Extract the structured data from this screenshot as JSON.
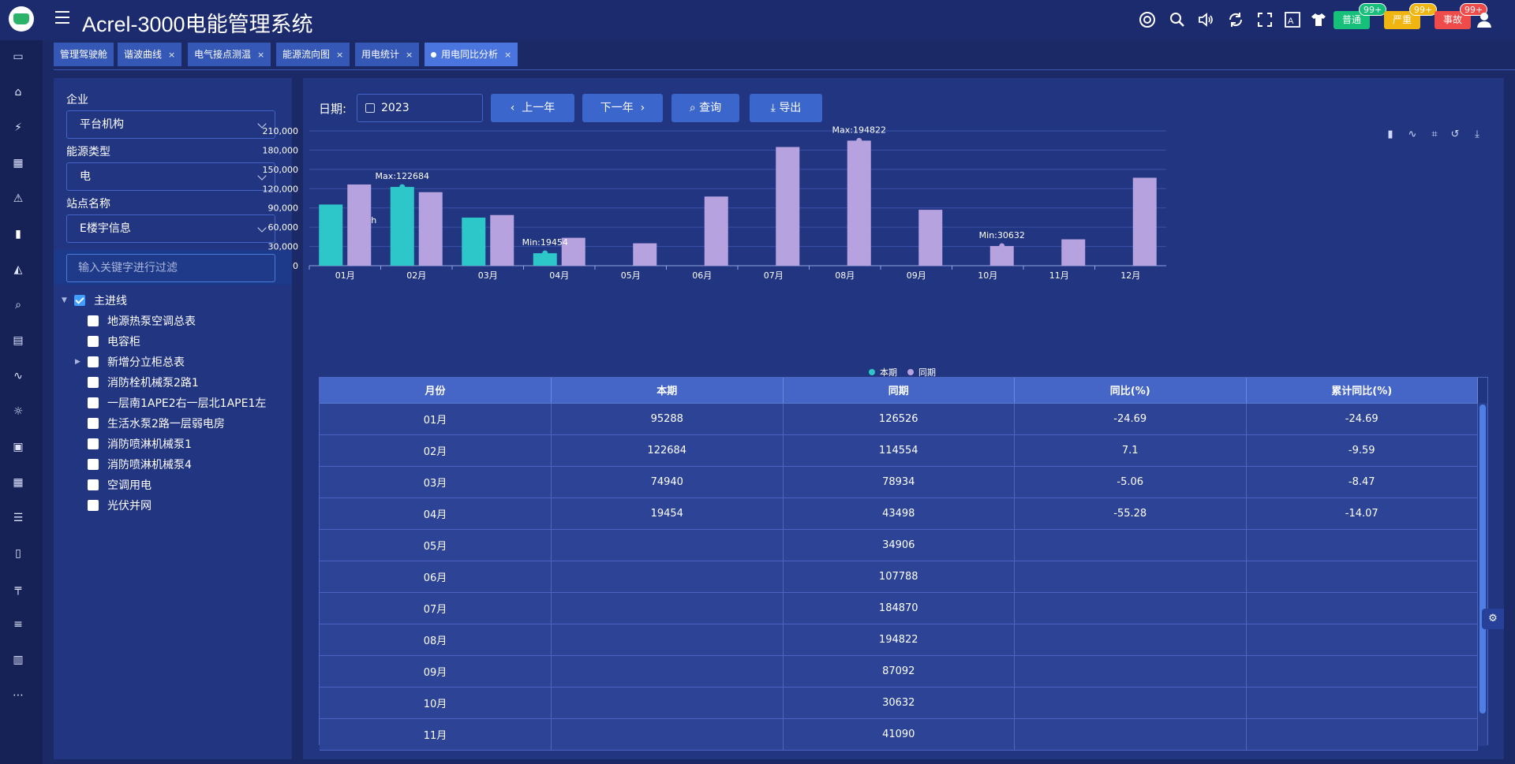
{
  "app": {
    "title": "Acrel-3000电能管理系统"
  },
  "header": {
    "icons": [
      "help-icon",
      "search-icon",
      "volume-icon",
      "refresh-icon",
      "fullscreen-icon",
      "translate-icon",
      "theme-icon",
      "user-icon"
    ],
    "alarms": [
      {
        "label": "普通",
        "badge": "99+",
        "color": "#17c07a"
      },
      {
        "label": "严重",
        "badge": "99+",
        "color": "#f1b512"
      },
      {
        "label": "事故",
        "badge": "99+",
        "color": "#f04b4b"
      }
    ]
  },
  "tabs": [
    {
      "label": "管理驾驶舱",
      "closable": false,
      "active": false
    },
    {
      "label": "谐波曲线",
      "closable": true,
      "active": false
    },
    {
      "label": "电气接点测温",
      "closable": true,
      "active": false
    },
    {
      "label": "能源流向图",
      "closable": true,
      "active": false
    },
    {
      "label": "用电统计",
      "closable": true,
      "active": false
    },
    {
      "label": "用电同比分析",
      "closable": true,
      "active": true
    }
  ],
  "left": {
    "company_label": "企业",
    "company_value": "平台机构",
    "energy_label": "能源类型",
    "energy_value": "电",
    "station_label": "站点名称",
    "station_value": "E楼宇信息",
    "filter_placeholder": "输入关键字进行过滤",
    "tree_root": "主进线",
    "tree_items": [
      "地源热泵空调总表",
      "电容柜",
      "新增分立柜总表",
      "消防栓机械泵2路1",
      "一层南1APE2右一层北1APE1左",
      "生活水泵2路一层弱电房",
      "消防喷淋机械泵1",
      "消防喷淋机械泵4",
      "空调用电",
      "光伏并网"
    ]
  },
  "toolbar": {
    "date_label": "日期:",
    "date_value": "2023",
    "prev_label": "上一年",
    "next_label": "下一年",
    "query_label": "查询",
    "export_label": "导出"
  },
  "chart_data": {
    "type": "bar",
    "ylabel": "kW.h",
    "ylim": [
      0,
      210000
    ],
    "yticks": [
      "0",
      "30,000",
      "60,000",
      "90,000",
      "120,000",
      "150,000",
      "180,000",
      "210,000"
    ],
    "categories": [
      "01月",
      "02月",
      "03月",
      "04月",
      "05月",
      "06月",
      "07月",
      "08月",
      "09月",
      "10月",
      "11月",
      "12月"
    ],
    "series": [
      {
        "name": "本期",
        "color": "#2ec7c9",
        "values": [
          95288,
          122684,
          74940,
          19454,
          null,
          null,
          null,
          null,
          null,
          null,
          null,
          null
        ]
      },
      {
        "name": "同期",
        "color": "#b6a2de",
        "values": [
          126526,
          114554,
          78934,
          43498,
          34906,
          107788,
          184870,
          194822,
          87092,
          30632,
          41090,
          137000
        ]
      }
    ],
    "annotations": [
      {
        "text": "Max:122684",
        "series": 0,
        "index": 1
      },
      {
        "text": "Min:19454",
        "series": 0,
        "index": 3
      },
      {
        "text": "Max:194822",
        "series": 1,
        "index": 7
      },
      {
        "text": "Min:30632",
        "series": 1,
        "index": 9
      }
    ],
    "legend": [
      "本期",
      "同期"
    ],
    "legend_position": "bottom-center"
  },
  "table": {
    "headers": [
      "月份",
      "本期",
      "同期",
      "同比(%)",
      "累计同比(%)"
    ],
    "rows": [
      [
        "01月",
        "95288",
        "126526",
        "-24.69",
        "-24.69"
      ],
      [
        "02月",
        "122684",
        "114554",
        "7.1",
        "-9.59"
      ],
      [
        "03月",
        "74940",
        "78934",
        "-5.06",
        "-8.47"
      ],
      [
        "04月",
        "19454",
        "43498",
        "-55.28",
        "-14.07"
      ],
      [
        "05月",
        "",
        "34906",
        "",
        ""
      ],
      [
        "06月",
        "",
        "107788",
        "",
        ""
      ],
      [
        "07月",
        "",
        "184870",
        "",
        ""
      ],
      [
        "08月",
        "",
        "194822",
        "",
        ""
      ],
      [
        "09月",
        "",
        "87092",
        "",
        ""
      ],
      [
        "10月",
        "",
        "30632",
        "",
        ""
      ],
      [
        "11月",
        "",
        "41090",
        "",
        ""
      ]
    ]
  }
}
